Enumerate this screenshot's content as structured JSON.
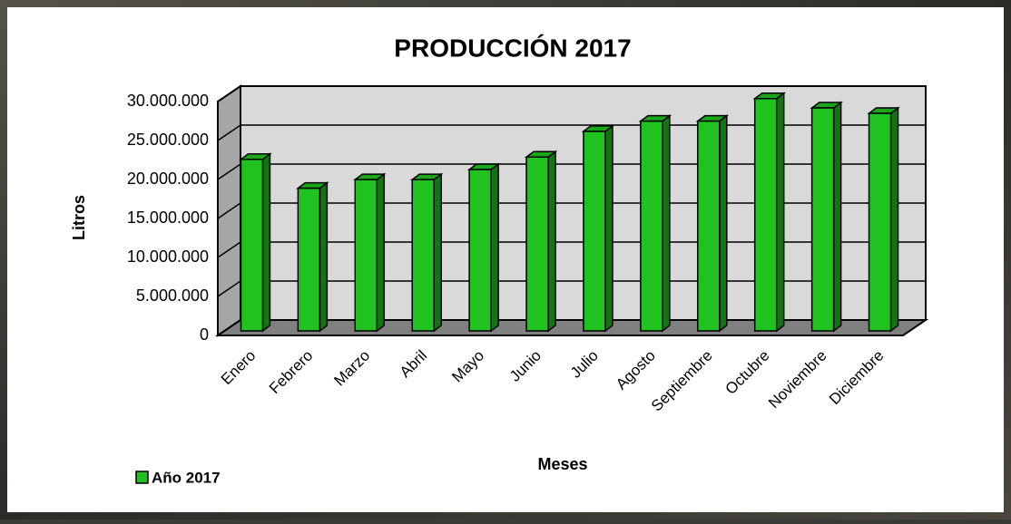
{
  "chart_data": {
    "type": "bar3d",
    "title": "PRODUCCIÓN 2017",
    "x_label": "Meses",
    "y_label": "Litros",
    "categories": [
      "Enero",
      "Febrero",
      "Marzo",
      "Abril",
      "Mayo",
      "Junio",
      "Julio",
      "Agosto",
      "Septiembre",
      "Octubre",
      "Noviembre",
      "Diciembre"
    ],
    "series": [
      {
        "name": "Año 2017",
        "color": "#1fc21f",
        "values": [
          22000000,
          18300000,
          19400000,
          19400000,
          20700000,
          22300000,
          25600000,
          26900000,
          26900000,
          29800000,
          28600000,
          27900000
        ]
      }
    ],
    "ylim": [
      0,
      30000000
    ],
    "yticks": [
      0,
      {
        "value": 5000000,
        "label": "5.000.000"
      },
      {
        "value": 10000000,
        "label": "10.000.000"
      },
      {
        "value": 15000000,
        "label": "15.000.000"
      },
      {
        "value": 20000000,
        "label": "20.000.000"
      },
      {
        "value": 25000000,
        "label": "25.000.000"
      },
      {
        "value": 30000000,
        "label": "30.000.000"
      }
    ],
    "grid": true,
    "legend": "bottom-left"
  }
}
